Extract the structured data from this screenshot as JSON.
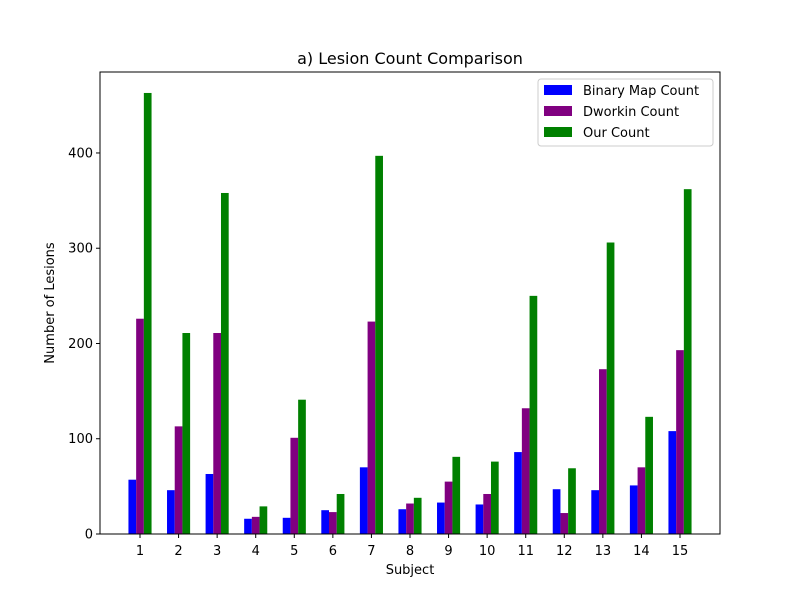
{
  "chart_data": {
    "type": "bar",
    "title": "a) Lesion Count Comparison",
    "xlabel": "Subject",
    "ylabel": "Number of Lesions",
    "categories": [
      "1",
      "2",
      "3",
      "4",
      "5",
      "6",
      "7",
      "8",
      "9",
      "10",
      "11",
      "12",
      "13",
      "14",
      "15"
    ],
    "ylim": [
      0,
      485
    ],
    "yticks": [
      0,
      100,
      200,
      300,
      400
    ],
    "grid": false,
    "legend_position": "top-right",
    "series": [
      {
        "name": "Binary Map Count",
        "color": "#0000ff",
        "values": [
          57,
          46,
          63,
          16,
          17,
          25,
          70,
          26,
          33,
          31,
          86,
          47,
          46,
          51,
          108
        ]
      },
      {
        "name": "Dworkin Count",
        "color": "#800080",
        "values": [
          226,
          113,
          211,
          18,
          101,
          23,
          223,
          32,
          55,
          42,
          132,
          22,
          173,
          70,
          193
        ]
      },
      {
        "name": "Our Count",
        "color": "#008000",
        "values": [
          463,
          211,
          358,
          29,
          141,
          42,
          397,
          38,
          81,
          76,
          250,
          69,
          306,
          123,
          362
        ]
      }
    ]
  }
}
